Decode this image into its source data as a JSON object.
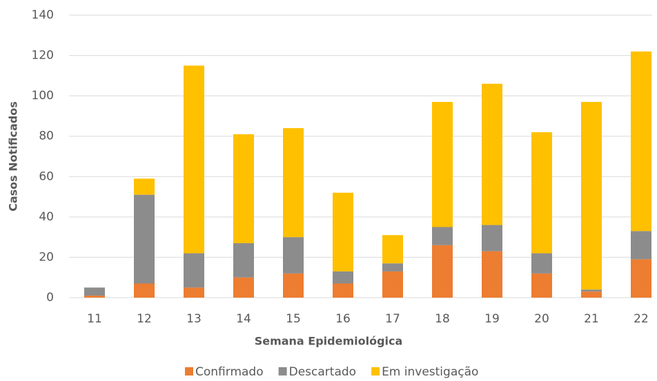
{
  "chart_data": {
    "type": "stacked_bar",
    "x_label": "Semana Epidemiológica",
    "y_label": "Casos Notificados",
    "categories": [
      "11",
      "12",
      "13",
      "14",
      "15",
      "16",
      "17",
      "18",
      "19",
      "20",
      "21",
      "22"
    ],
    "series": [
      {
        "name": "Confirmado",
        "color": "#ed7d31",
        "values": [
          1,
          7,
          5,
          10,
          12,
          7,
          13,
          26,
          23,
          12,
          3,
          19
        ]
      },
      {
        "name": "Descartado",
        "color": "#8c8c8c",
        "values": [
          4,
          44,
          17,
          17,
          18,
          6,
          4,
          9,
          13,
          10,
          1,
          14
        ]
      },
      {
        "name": "Em investigação",
        "color": "#ffc000",
        "values": [
          0,
          8,
          93,
          54,
          54,
          39,
          14,
          62,
          70,
          60,
          93,
          89
        ]
      }
    ],
    "ylim": [
      0,
      140
    ],
    "yticks": [
      0,
      20,
      40,
      60,
      80,
      100,
      120,
      140
    ],
    "grid": true,
    "legend": "bottom"
  }
}
